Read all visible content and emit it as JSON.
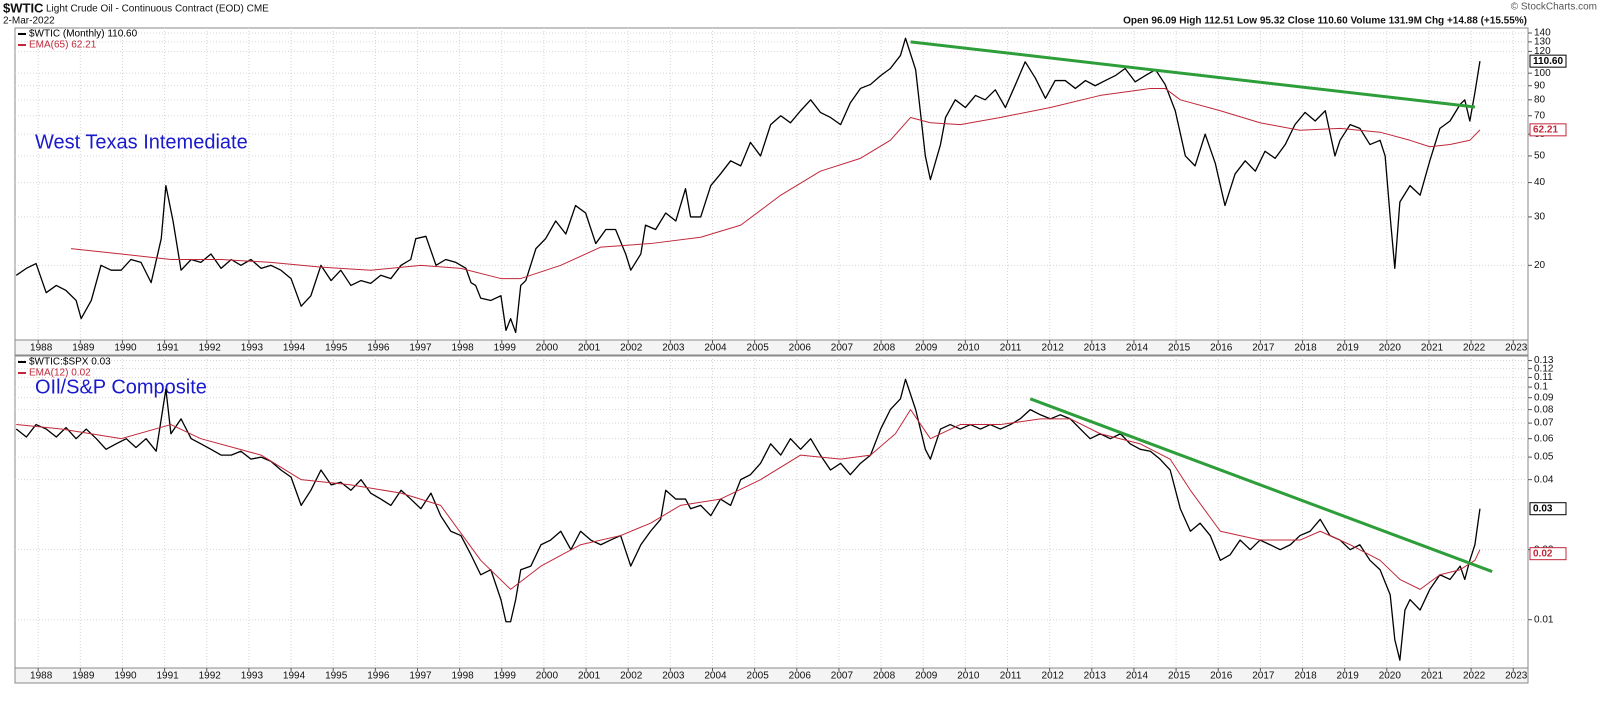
{
  "chart_data": [
    {
      "type": "line",
      "symbol": "$WTIC",
      "title": "Light Crude Oil - Continuous Contract (EOD) CME",
      "date": "2-Mar-2022",
      "quote": "Open 96.09 High 112.51 Low 95.32 Close 110.60 Volume 131.9M Chg +14.88 (+15.55%)",
      "credit": "© StockCharts.com",
      "annotation": "West Texas Intemediate",
      "annotation_color": "#1a1acd",
      "log": true,
      "grid": true,
      "xlim": [
        1987.45,
        2023.35
      ],
      "xticks": [
        1988,
        1989,
        1990,
        1991,
        1992,
        1993,
        1994,
        1995,
        1996,
        1997,
        1998,
        1999,
        2000,
        2001,
        2002,
        2003,
        2004,
        2005,
        2006,
        2007,
        2008,
        2009,
        2010,
        2011,
        2012,
        2013,
        2014,
        2015,
        2016,
        2017,
        2018,
        2019,
        2020,
        2021,
        2022,
        2023
      ],
      "ylim": [
        10.7,
        146
      ],
      "yticks": [
        20,
        30,
        40,
        50,
        60,
        70,
        80,
        90,
        100,
        120,
        130,
        140
      ],
      "series": [
        {
          "name": "$WTIC (Monthly) 110.60",
          "color": "#000000",
          "last_label": "110.60",
          "x": [
            1987.48,
            1987.72,
            1987.95,
            1988.19,
            1988.43,
            1988.66,
            1988.9,
            1989.02,
            1989.26,
            1989.49,
            1989.73,
            1989.97,
            1990.2,
            1990.44,
            1990.68,
            1990.92,
            1991.03,
            1991.2,
            1991.39,
            1991.63,
            1991.86,
            1992.1,
            1992.34,
            1992.58,
            1992.81,
            1993.05,
            1993.29,
            1993.52,
            1993.76,
            1994.0,
            1994.24,
            1994.47,
            1994.71,
            1994.95,
            1995.18,
            1995.42,
            1995.66,
            1995.89,
            1996.13,
            1996.37,
            1996.61,
            1996.84,
            1996.96,
            1997.2,
            1997.44,
            1997.67,
            1997.91,
            1998.15,
            1998.27,
            1998.38,
            1998.5,
            1998.74,
            1998.98,
            1999.1,
            1999.21,
            1999.33,
            1999.45,
            1999.57,
            1999.81,
            2000.04,
            2000.28,
            2000.52,
            2000.75,
            2000.99,
            2001.23,
            2001.47,
            2001.7,
            2001.94,
            2002.06,
            2002.3,
            2002.41,
            2002.65,
            2002.89,
            2003.13,
            2003.36,
            2003.48,
            2003.72,
            2003.96,
            2004.19,
            2004.43,
            2004.67,
            2004.9,
            2005.14,
            2005.38,
            2005.62,
            2005.85,
            2006.09,
            2006.33,
            2006.56,
            2006.8,
            2007.04,
            2007.27,
            2007.51,
            2007.75,
            2007.99,
            2008.22,
            2008.46,
            2008.58,
            2008.82,
            2009.05,
            2009.17,
            2009.41,
            2009.53,
            2009.76,
            2010.0,
            2010.24,
            2010.47,
            2010.71,
            2010.95,
            2011.19,
            2011.42,
            2011.66,
            2011.9,
            2012.13,
            2012.37,
            2012.61,
            2012.85,
            2013.08,
            2013.32,
            2013.56,
            2013.79,
            2014.03,
            2014.27,
            2014.51,
            2014.74,
            2014.98,
            2015.22,
            2015.45,
            2015.69,
            2015.93,
            2016.16,
            2016.4,
            2016.64,
            2016.88,
            2017.11,
            2017.35,
            2017.59,
            2017.82,
            2018.06,
            2018.3,
            2018.54,
            2018.77,
            2018.89,
            2019.13,
            2019.36,
            2019.6,
            2019.84,
            2019.96,
            2020.08,
            2020.19,
            2020.31,
            2020.55,
            2020.79,
            2021.02,
            2021.26,
            2021.5,
            2021.74,
            2021.85,
            2021.97,
            2022.09,
            2022.21
          ],
          "values": [
            18.4,
            19.5,
            20.3,
            15.9,
            16.9,
            16.2,
            14.9,
            12.8,
            14.9,
            20,
            19.2,
            19.2,
            21,
            20.5,
            17.3,
            25,
            39,
            29,
            19.2,
            21,
            20.5,
            22,
            19.5,
            21,
            20,
            21,
            19.5,
            20,
            19.2,
            17.9,
            14.2,
            15.5,
            20,
            17.6,
            19.2,
            16.9,
            17.6,
            17.2,
            18.4,
            17.9,
            20,
            21,
            25,
            25.5,
            20,
            21,
            20.5,
            19.5,
            17.3,
            16.9,
            15.2,
            14.9,
            15.5,
            11.6,
            12.8,
            11.4,
            16.9,
            17.6,
            23,
            25,
            29,
            26,
            33,
            31,
            24,
            27,
            27,
            22,
            19.2,
            22,
            28,
            27,
            31,
            29,
            38,
            30,
            30,
            39,
            43,
            48,
            46,
            56,
            50,
            65,
            70,
            66,
            73,
            80,
            72,
            69,
            65,
            78,
            88,
            91,
            98,
            104,
            116,
            134,
            103,
            50,
            41,
            55,
            69,
            80,
            75,
            83,
            80,
            87,
            75,
            91,
            110,
            96,
            81,
            94,
            94,
            88,
            94,
            90,
            94,
            98,
            104,
            93,
            98,
            103,
            91,
            73,
            50,
            46,
            60,
            47,
            33,
            43,
            48,
            44,
            52,
            49,
            55,
            65,
            72,
            67,
            73,
            50,
            57,
            65,
            63,
            55,
            57,
            50,
            30,
            19.5,
            34,
            39,
            36,
            48,
            63,
            67,
            77,
            80,
            67,
            85,
            110.6
          ]
        },
        {
          "name": "EMA(65) 62.21",
          "color": "#c0283a",
          "last_label": "62.21",
          "x": [
            1988.78,
            1989.97,
            1991.15,
            1992.34,
            1993.52,
            1994.71,
            1995.89,
            1997.08,
            1998.03,
            1998.98,
            1999.45,
            2000.4,
            2001.35,
            2002.53,
            2003.72,
            2004.67,
            2005.62,
            2006.56,
            2007.51,
            2008.22,
            2008.7,
            2009.17,
            2009.88,
            2010.83,
            2012.02,
            2013.2,
            2014.39,
            2014.74,
            2015.1,
            2016.05,
            2016.99,
            2017.94,
            2018.89,
            2019.84,
            2020.55,
            2021.02,
            2021.5,
            2021.97,
            2022.21
          ],
          "values": [
            23,
            22,
            21,
            21,
            20.5,
            19.7,
            19.2,
            20,
            19.5,
            17.9,
            17.9,
            20,
            23.3,
            24,
            25.3,
            28,
            36,
            44,
            49,
            57,
            69,
            66,
            65,
            69,
            75,
            83,
            88,
            88,
            80,
            73,
            66,
            62,
            63,
            61,
            57,
            54,
            55,
            57,
            62.21
          ]
        }
      ],
      "trendline": {
        "color": "#2e9e3a",
        "x": [
          2008.7,
          2022.09
        ],
        "values": [
          130,
          75.3
        ]
      }
    },
    {
      "type": "line",
      "annotation": "OIl/S&P Composite",
      "annotation_color": "#1a1acd",
      "log": true,
      "grid": true,
      "xlim": [
        1987.45,
        2023.35
      ],
      "xticks": [
        1988,
        1989,
        1990,
        1991,
        1992,
        1993,
        1994,
        1995,
        1996,
        1997,
        1998,
        1999,
        2000,
        2001,
        2002,
        2003,
        2004,
        2005,
        2006,
        2007,
        2008,
        2009,
        2010,
        2011,
        2012,
        2013,
        2014,
        2015,
        2016,
        2017,
        2018,
        2019,
        2020,
        2021,
        2022,
        2023
      ],
      "ylim": [
        0.0062,
        0.136
      ],
      "yticks": [
        0.01,
        0.02,
        0.04,
        0.05,
        0.06,
        0.07,
        0.08,
        0.09,
        0.1,
        0.11,
        0.12,
        0.13
      ],
      "series": [
        {
          "name": "$WTIC:$SPX 0.03",
          "color": "#000000",
          "last_label": "0.03",
          "x": [
            1987.48,
            1987.72,
            1987.95,
            1988.19,
            1988.43,
            1988.66,
            1988.9,
            1989.14,
            1989.38,
            1989.61,
            1989.85,
            1990.09,
            1990.32,
            1990.56,
            1990.8,
            1990.92,
            1991.03,
            1991.15,
            1991.39,
            1991.63,
            1991.86,
            1992.1,
            1992.34,
            1992.58,
            1992.81,
            1993.05,
            1993.29,
            1993.52,
            1993.76,
            1994.0,
            1994.24,
            1994.47,
            1994.71,
            1994.95,
            1995.18,
            1995.42,
            1995.66,
            1995.89,
            1996.13,
            1996.37,
            1996.61,
            1996.84,
            1997.08,
            1997.32,
            1997.55,
            1997.79,
            1998.03,
            1998.27,
            1998.5,
            1998.74,
            1998.98,
            1999.1,
            1999.21,
            1999.33,
            1999.45,
            1999.69,
            1999.93,
            2000.16,
            2000.4,
            2000.64,
            2000.87,
            2001.11,
            2001.35,
            2001.58,
            2001.82,
            2002.06,
            2002.3,
            2002.53,
            2002.77,
            2002.89,
            2003.13,
            2003.36,
            2003.48,
            2003.72,
            2003.96,
            2004.19,
            2004.43,
            2004.67,
            2004.9,
            2005.14,
            2005.38,
            2005.62,
            2005.85,
            2006.09,
            2006.33,
            2006.56,
            2006.8,
            2007.04,
            2007.27,
            2007.51,
            2007.75,
            2007.99,
            2008.22,
            2008.46,
            2008.58,
            2008.82,
            2009.05,
            2009.17,
            2009.41,
            2009.64,
            2009.88,
            2010.12,
            2010.36,
            2010.59,
            2010.83,
            2011.07,
            2011.3,
            2011.54,
            2011.78,
            2012.02,
            2012.25,
            2012.49,
            2012.73,
            2012.96,
            2013.2,
            2013.44,
            2013.68,
            2013.91,
            2014.15,
            2014.39,
            2014.62,
            2014.86,
            2015.1,
            2015.34,
            2015.57,
            2015.81,
            2016.05,
            2016.28,
            2016.52,
            2016.76,
            2016.99,
            2017.23,
            2017.47,
            2017.71,
            2017.94,
            2018.18,
            2018.42,
            2018.65,
            2018.89,
            2019.13,
            2019.36,
            2019.6,
            2019.84,
            2020.08,
            2020.19,
            2020.31,
            2020.43,
            2020.55,
            2020.79,
            2021.02,
            2021.26,
            2021.5,
            2021.74,
            2021.85,
            2021.97,
            2022.09,
            2022.21
          ],
          "values": [
            0.066,
            0.061,
            0.069,
            0.066,
            0.061,
            0.067,
            0.06,
            0.066,
            0.06,
            0.054,
            0.057,
            0.06,
            0.055,
            0.06,
            0.053,
            0.073,
            0.098,
            0.063,
            0.073,
            0.06,
            0.057,
            0.054,
            0.051,
            0.051,
            0.053,
            0.049,
            0.05,
            0.048,
            0.044,
            0.041,
            0.031,
            0.036,
            0.044,
            0.038,
            0.039,
            0.036,
            0.04,
            0.035,
            0.033,
            0.031,
            0.036,
            0.033,
            0.03,
            0.035,
            0.028,
            0.024,
            0.023,
            0.019,
            0.0156,
            0.0164,
            0.0122,
            0.0098,
            0.0098,
            0.0122,
            0.0164,
            0.017,
            0.021,
            0.022,
            0.024,
            0.02,
            0.024,
            0.022,
            0.021,
            0.022,
            0.023,
            0.017,
            0.021,
            0.024,
            0.027,
            0.036,
            0.033,
            0.033,
            0.03,
            0.031,
            0.028,
            0.033,
            0.031,
            0.04,
            0.042,
            0.047,
            0.057,
            0.051,
            0.06,
            0.054,
            0.06,
            0.051,
            0.044,
            0.047,
            0.042,
            0.047,
            0.051,
            0.066,
            0.08,
            0.089,
            0.108,
            0.08,
            0.054,
            0.049,
            0.066,
            0.069,
            0.066,
            0.069,
            0.066,
            0.069,
            0.066,
            0.069,
            0.073,
            0.08,
            0.076,
            0.073,
            0.076,
            0.073,
            0.066,
            0.06,
            0.063,
            0.06,
            0.063,
            0.057,
            0.054,
            0.053,
            0.049,
            0.044,
            0.03,
            0.024,
            0.026,
            0.023,
            0.018,
            0.019,
            0.022,
            0.02,
            0.022,
            0.021,
            0.02,
            0.021,
            0.023,
            0.024,
            0.027,
            0.023,
            0.022,
            0.02,
            0.021,
            0.018,
            0.0164,
            0.0128,
            0.0082,
            0.0067,
            0.011,
            0.0122,
            0.011,
            0.0135,
            0.0156,
            0.0149,
            0.017,
            0.0149,
            0.018,
            0.021,
            0.03
          ]
        },
        {
          "name": "EMA(12) 0.02",
          "color": "#c0283a",
          "last_label": "0.02",
          "x": [
            1987.48,
            1988.55,
            1989.97,
            1991.15,
            1991.86,
            1993.29,
            1994.24,
            1995.42,
            1996.61,
            1997.55,
            1998.5,
            1999.21,
            1999.93,
            2000.87,
            2001.82,
            2002.53,
            2003.24,
            2004.19,
            2005.14,
            2006.09,
            2007.04,
            2007.75,
            2008.34,
            2008.7,
            2009.17,
            2009.88,
            2010.83,
            2011.78,
            2012.49,
            2013.2,
            2014.15,
            2014.86,
            2015.34,
            2016.05,
            2016.99,
            2017.94,
            2018.42,
            2019.13,
            2019.84,
            2020.31,
            2020.79,
            2021.26,
            2021.74,
            2022.09,
            2022.21
          ],
          "values": [
            0.069,
            0.066,
            0.06,
            0.069,
            0.06,
            0.051,
            0.04,
            0.038,
            0.035,
            0.031,
            0.018,
            0.0135,
            0.017,
            0.021,
            0.023,
            0.026,
            0.031,
            0.033,
            0.04,
            0.051,
            0.049,
            0.051,
            0.063,
            0.08,
            0.06,
            0.069,
            0.069,
            0.073,
            0.073,
            0.063,
            0.057,
            0.049,
            0.036,
            0.024,
            0.022,
            0.022,
            0.024,
            0.021,
            0.018,
            0.0149,
            0.0135,
            0.0156,
            0.0164,
            0.018,
            0.02
          ]
        }
      ],
      "trendline": {
        "color": "#2e9e3a",
        "x": [
          2011.54,
          2022.5
        ],
        "values": [
          0.089,
          0.0161
        ]
      }
    }
  ]
}
